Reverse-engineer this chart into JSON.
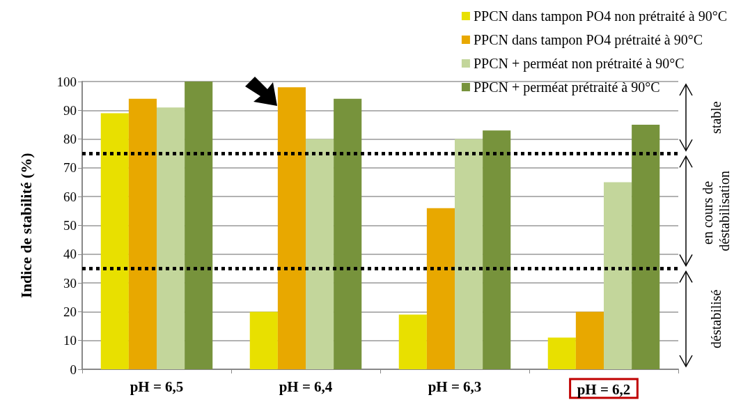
{
  "chart_data": {
    "type": "bar",
    "ylabel": "Indice de stabilité (%)",
    "categories": [
      "pH = 6,5",
      "pH = 6,4",
      "pH = 6,3",
      "pH = 6,2"
    ],
    "series": [
      {
        "name": "PPCN dans tampon PO4 non prétraité à 90°C",
        "color": "#e8e000",
        "values": [
          89,
          20,
          19,
          11
        ]
      },
      {
        "name": "PPCN dans tampon PO4 prétraité à 90°C",
        "color": "#e8a800",
        "values": [
          94,
          98,
          56,
          20
        ]
      },
      {
        "name": "PPCN + perméat non prétraité à 90°C",
        "color": "#c3d69b",
        "values": [
          91,
          80,
          80,
          65
        ]
      },
      {
        "name": "PPCN + perméat prétraité à 90°C",
        "color": "#77933c",
        "values": [
          100,
          94,
          83,
          85
        ]
      }
    ],
    "ylim": [
      0,
      100
    ],
    "yticks": [
      0,
      10,
      20,
      30,
      40,
      50,
      60,
      70,
      80,
      90,
      100
    ],
    "grid": "y",
    "legend": "top right",
    "ref_lines": [
      {
        "axis": "y",
        "value": 75,
        "color": "#000000",
        "line_style": "dotted"
      },
      {
        "axis": "y",
        "value": 35,
        "color": "#000000",
        "line_style": "dotted"
      }
    ],
    "annotations": [
      "stable",
      "en cours de déstabilisation",
      "déstabilisé"
    ]
  }
}
